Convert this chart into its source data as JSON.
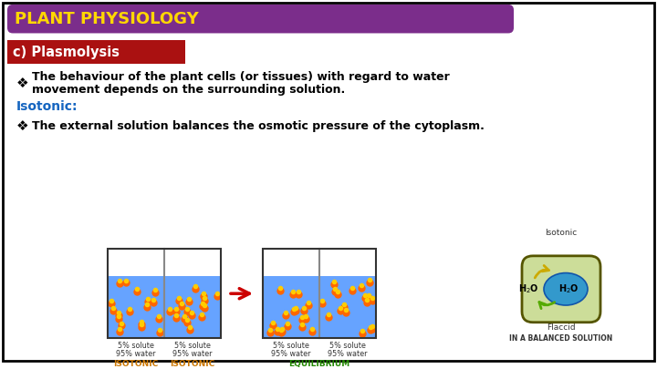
{
  "bg_color": "#ffffff",
  "border_color": "#000000",
  "title_bg_color": "#7b2d8b",
  "title_text": "PLANT PHYSIOLOGY",
  "title_text_color": "#FFD700",
  "subtitle_bg_color": "#aa1111",
  "subtitle_text": "c) Plasmolysis",
  "subtitle_text_color": "#ffffff",
  "isotonic_label": "Isotonic:",
  "isotonic_color": "#1565C0",
  "bullet2": "The external solution balances the osmotic pressure of the cytoplasm.",
  "body_text_color": "#000000",
  "bullet_symbol": "❖",
  "water_color": "#5599ff",
  "molecule_color1": "#ff6600",
  "molecule_color2": "#ffcc00",
  "arrow_color": "#cc0000",
  "cell_wall_color": "#555500",
  "cell_fill_color": "#ccdd99",
  "cytoplasm_color": "#3399cc",
  "arrow_green": "#55aa00",
  "label_orange": "#cc7700",
  "label_green": "#228800"
}
